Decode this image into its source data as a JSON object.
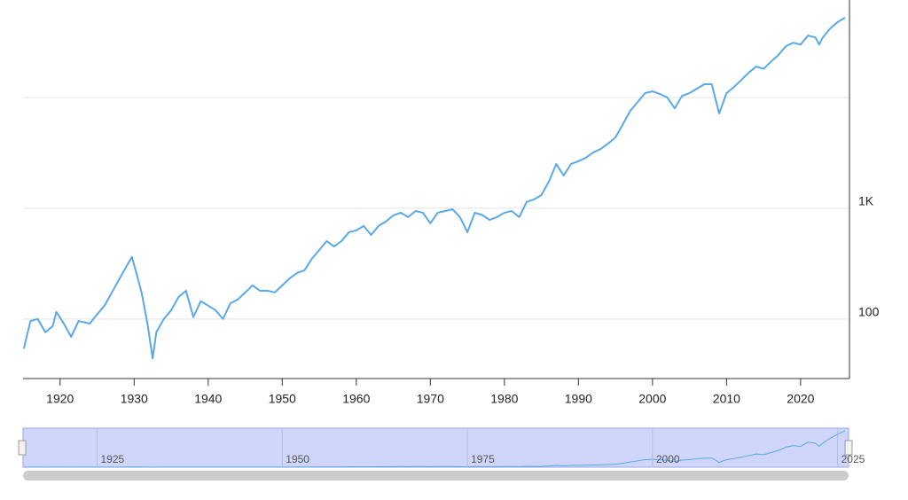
{
  "chart_data": {
    "type": "line",
    "log_y": true,
    "grid": true,
    "y_axis_side": "right",
    "xlim": [
      1915,
      2026.6
    ],
    "ylim": [
      29,
      76000
    ],
    "xticks": [
      1920,
      1930,
      1940,
      1950,
      1960,
      1970,
      1980,
      1990,
      2000,
      2010,
      2020
    ],
    "yticks": [
      {
        "value": 100,
        "label": "100"
      },
      {
        "value": 1000,
        "label": "1K"
      },
      {
        "value": 10000,
        "label": null
      }
    ],
    "series": [
      {
        "color": "#5ba8e8",
        "x": [
          1915.1,
          1916,
          1917,
          1918,
          1919,
          1919.5,
          1920.5,
          1921.5,
          1922.5,
          1924,
          1925,
          1926,
          1927,
          1928,
          1929,
          1929.7,
          1930.2,
          1931,
          1931.8,
          1932.5,
          1933,
          1934,
          1935,
          1936,
          1937,
          1938,
          1939,
          1940,
          1941,
          1942,
          1943,
          1944,
          1945,
          1946,
          1947,
          1948,
          1949,
          1950,
          1951,
          1952,
          1953,
          1954,
          1955,
          1956,
          1957,
          1958,
          1959,
          1960,
          1961,
          1962,
          1963,
          1964,
          1965,
          1966,
          1967,
          1968,
          1969,
          1970,
          1971,
          1972,
          1973,
          1974,
          1975,
          1976,
          1977,
          1978,
          1979,
          1980,
          1981,
          1982,
          1983,
          1984,
          1985,
          1986,
          1987,
          1988,
          1989,
          1990,
          1991,
          1992,
          1993,
          1994,
          1995,
          1996,
          1997,
          1998,
          1999,
          2000,
          2001,
          2002,
          2003,
          2004,
          2005,
          2006,
          2007,
          2008,
          2009,
          2010,
          2011,
          2012,
          2013,
          2014,
          2015,
          2016,
          2017,
          2018,
          2019,
          2020,
          2021,
          2022,
          2022.5,
          2023,
          2024,
          2025,
          2026
        ],
        "values": [
          54,
          96,
          100,
          76,
          86,
          116,
          91,
          69,
          96,
          91,
          110,
          132,
          174,
          229,
          302,
          363,
          275,
          174,
          91,
          44,
          76,
          100,
          120,
          158,
          180,
          104,
          145,
          132,
          120,
          100,
          139,
          150,
          174,
          201,
          180,
          180,
          174,
          201,
          233,
          260,
          275,
          350,
          420,
          505,
          452,
          505,
          608,
          631,
          692,
          575,
          692,
          759,
          863,
          912,
          832,
          945,
          912,
          731,
          912,
          945,
          980,
          832,
          608,
          912,
          870,
          785,
          832,
          912,
          945,
          832,
          1141,
          1202,
          1318,
          1738,
          2512,
          1977,
          2512,
          2661,
          2858,
          3195,
          3428,
          3838,
          4365,
          5754,
          7586,
          9120,
          10965,
          11376,
          10765,
          10000,
          8000,
          10375,
          10965,
          12023,
          13182,
          13182,
          7178,
          10965,
          12445,
          14454,
          16788,
          19055,
          18197,
          21086,
          24210,
          29065,
          31261,
          30103,
          36308,
          34834,
          30103,
          34834,
          42073,
          48000,
          52700
        ]
      }
    ]
  },
  "navigator": {
    "xticks": [
      1925,
      1950,
      1975,
      2000,
      2025
    ]
  }
}
